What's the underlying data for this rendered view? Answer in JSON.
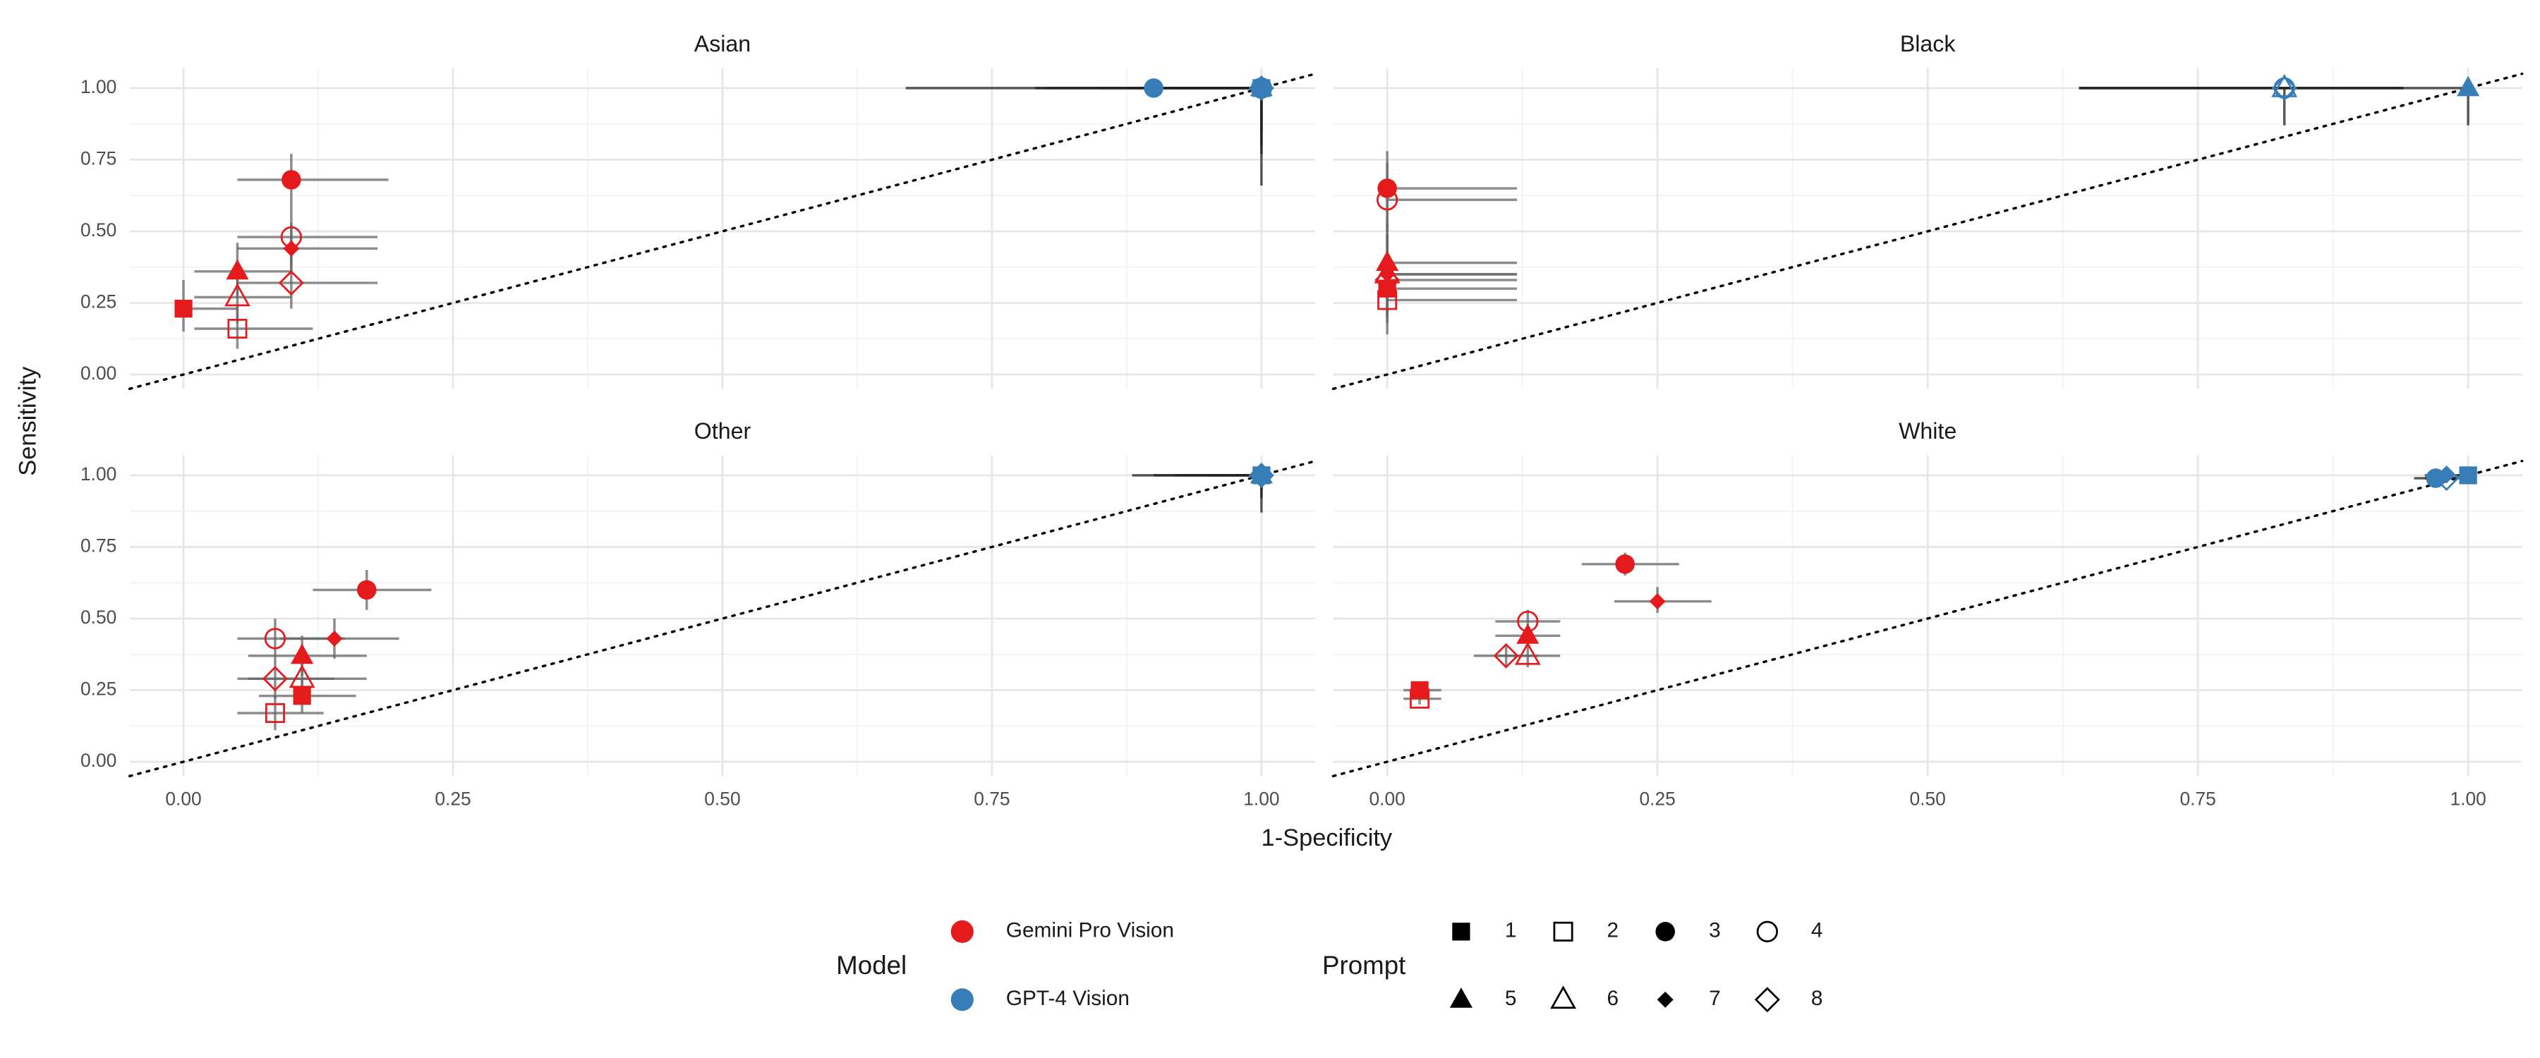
{
  "chart_data": {
    "type": "scatter",
    "xlabel": "1-Specificity",
    "ylabel": "Sensitivity",
    "xlim": [
      -0.05,
      1.05
    ],
    "ylim": [
      -0.05,
      1.07
    ],
    "xticks": [
      {
        "value": 0,
        "label": "0.00"
      },
      {
        "value": 0.25,
        "label": "0.25"
      },
      {
        "value": 0.5,
        "label": "0.50"
      },
      {
        "value": 0.75,
        "label": "0.75"
      },
      {
        "value": 1,
        "label": "1.00"
      }
    ],
    "yticks": [
      {
        "value": 0,
        "label": "0.00"
      },
      {
        "value": 0.25,
        "label": "0.25"
      },
      {
        "value": 0.5,
        "label": "0.50"
      },
      {
        "value": 0.75,
        "label": "0.75"
      },
      {
        "value": 1,
        "label": "1.00"
      }
    ],
    "grid": true,
    "legend_title": "Model",
    "series": [
      {
        "name": "Gemini Pro Vision",
        "color": "#e41a1c"
      },
      {
        "name": "GPT-4 Vision",
        "color": "#377eb8"
      }
    ],
    "shape_legend_title": "Prompt",
    "prompts": [
      {
        "label": "1",
        "shape": "square",
        "filled": true
      },
      {
        "label": "2",
        "shape": "square",
        "filled": false
      },
      {
        "label": "3",
        "shape": "circle",
        "filled": true
      },
      {
        "label": "4",
        "shape": "circle",
        "filled": false
      },
      {
        "label": "5",
        "shape": "triangle",
        "filled": true
      },
      {
        "label": "6",
        "shape": "triangle",
        "filled": false
      },
      {
        "label": "7",
        "shape": "diamond",
        "filled": true
      },
      {
        "label": "8",
        "shape": "diamond",
        "filled": false
      }
    ],
    "facets": [
      {
        "title": "Asian",
        "series": [
          {
            "points": [
              {
                "x": 0,
                "y": 0.23,
                "x_err": [
                  0,
                  0.05
                ],
                "y_err": [
                  0.15,
                  0.33
                ]
              },
              {
                "x": 0.05,
                "y": 0.16,
                "x_err": [
                  0.01,
                  0.12
                ],
                "y_err": [
                  0.09,
                  0.24
                ]
              },
              {
                "x": 0.1,
                "y": 0.68,
                "x_err": [
                  0.05,
                  0.19
                ],
                "y_err": [
                  0.58,
                  0.77
                ]
              },
              {
                "x": 0.1,
                "y": 0.48,
                "x_err": [
                  0.05,
                  0.18
                ],
                "y_err": [
                  0.38,
                  0.58
                ]
              },
              {
                "x": 0.05,
                "y": 0.36,
                "x_err": [
                  0.01,
                  0.1
                ],
                "y_err": [
                  0.27,
                  0.46
                ]
              },
              {
                "x": 0.05,
                "y": 0.27,
                "x_err": [
                  0.01,
                  0.1
                ],
                "y_err": [
                  0.18,
                  0.36
                ]
              },
              {
                "x": 0.1,
                "y": 0.44,
                "x_err": [
                  0.05,
                  0.18
                ],
                "y_err": [
                  0.35,
                  0.53
                ]
              },
              {
                "x": 0.1,
                "y": 0.32,
                "x_err": [
                  0.05,
                  0.18
                ],
                "y_err": [
                  0.23,
                  0.42
                ]
              }
            ]
          },
          {
            "points": [
              {
                "x": 1,
                "y": 1,
                "x_err": [
                  0.79,
                  1
                ],
                "y_err": [
                  0.66,
                  1
                ]
              },
              null,
              {
                "x": 0.9,
                "y": 1,
                "x_err": [
                  0.67,
                  1
                ],
                "y_err": [
                  1,
                  1
                ]
              },
              {
                "x": 1,
                "y": 1,
                "x_err": [
                  0.8,
                  1
                ],
                "y_err": [
                  0.8,
                  1
                ]
              },
              {
                "x": 1,
                "y": 1,
                "x_err": [
                  0.85,
                  1
                ],
                "y_err": [
                  0.77,
                  1
                ]
              },
              null,
              {
                "x": 1,
                "y": 1,
                "x_err": [
                  0.9,
                  1
                ],
                "y_err": [
                  0.9,
                  1
                ]
              },
              {
                "x": 1,
                "y": 1,
                "x_err": [
                  0.88,
                  1
                ],
                "y_err": [
                  0.85,
                  1
                ]
              }
            ]
          }
        ]
      },
      {
        "title": "Black",
        "series": [
          {
            "points": [
              {
                "x": 0,
                "y": 0.3,
                "x_err": [
                  0,
                  0.12
                ],
                "y_err": [
                  0.18,
                  0.42
                ]
              },
              {
                "x": 0,
                "y": 0.26,
                "x_err": [
                  0,
                  0.12
                ],
                "y_err": [
                  0.14,
                  0.38
                ]
              },
              {
                "x": 0,
                "y": 0.65,
                "x_err": [
                  0,
                  0.12
                ],
                "y_err": [
                  0.5,
                  0.78
                ]
              },
              {
                "x": 0,
                "y": 0.61,
                "x_err": [
                  0,
                  0.12
                ],
                "y_err": [
                  0.46,
                  0.74
                ]
              },
              {
                "x": 0,
                "y": 0.39,
                "x_err": [
                  0,
                  0.12
                ],
                "y_err": [
                  0.26,
                  0.53
                ]
              },
              {
                "x": 0,
                "y": 0.35,
                "x_err": [
                  0,
                  0.12
                ],
                "y_err": [
                  0.22,
                  0.49
                ]
              },
              {
                "x": 0,
                "y": 0.35,
                "x_err": [
                  0,
                  0.12
                ],
                "y_err": [
                  0.21,
                  0.49
                ]
              },
              {
                "x": 0,
                "y": 0.33,
                "x_err": [
                  0,
                  0.12
                ],
                "y_err": [
                  0.2,
                  0.47
                ]
              }
            ]
          },
          {
            "points": [
              null,
              null,
              null,
              {
                "x": 0.83,
                "y": 1,
                "x_err": [
                  0.64,
                  0.94
                ],
                "y_err": [
                  1,
                  1
                ]
              },
              {
                "x": 1,
                "y": 1,
                "x_err": [
                  1,
                  1
                ],
                "y_err": [
                  0.87,
                  1
                ]
              },
              {
                "x": 0.83,
                "y": 1,
                "x_err": [
                  0.64,
                  1
                ],
                "y_err": [
                  0.87,
                  1
                ]
              },
              null,
              {
                "x": 0.83,
                "y": 1,
                "x_err": [
                  0.64,
                  0.94
                ],
                "y_err": [
                  1,
                  1
                ]
              }
            ]
          }
        ]
      },
      {
        "title": "Other",
        "series": [
          {
            "points": [
              {
                "x": 0.11,
                "y": 0.23,
                "x_err": [
                  0.07,
                  0.16
                ],
                "y_err": [
                  0.17,
                  0.29
                ]
              },
              {
                "x": 0.085,
                "y": 0.17,
                "x_err": [
                  0.05,
                  0.13
                ],
                "y_err": [
                  0.11,
                  0.23
                ]
              },
              {
                "x": 0.17,
                "y": 0.6,
                "x_err": [
                  0.12,
                  0.23
                ],
                "y_err": [
                  0.53,
                  0.67
                ]
              },
              {
                "x": 0.085,
                "y": 0.43,
                "x_err": [
                  0.05,
                  0.15
                ],
                "y_err": [
                  0.36,
                  0.5
                ]
              },
              {
                "x": 0.11,
                "y": 0.37,
                "x_err": [
                  0.06,
                  0.17
                ],
                "y_err": [
                  0.3,
                  0.44
                ]
              },
              {
                "x": 0.11,
                "y": 0.29,
                "x_err": [
                  0.06,
                  0.17
                ],
                "y_err": [
                  0.22,
                  0.36
                ]
              },
              {
                "x": 0.14,
                "y": 0.43,
                "x_err": [
                  0.09,
                  0.2
                ],
                "y_err": [
                  0.36,
                  0.5
                ]
              },
              {
                "x": 0.085,
                "y": 0.29,
                "x_err": [
                  0.05,
                  0.14
                ],
                "y_err": [
                  0.22,
                  0.36
                ]
              }
            ]
          },
          {
            "points": [
              {
                "x": 1,
                "y": 1,
                "x_err": [
                  0.9,
                  1
                ],
                "y_err": [
                  0.87,
                  1
                ]
              },
              null,
              {
                "x": 1,
                "y": 1,
                "x_err": [
                  0.88,
                  1
                ],
                "y_err": [
                  1,
                  1
                ]
              },
              null,
              {
                "x": 1,
                "y": 1,
                "x_err": [
                  0.95,
                  1
                ],
                "y_err": [
                  0.95,
                  1
                ]
              },
              null,
              null,
              {
                "x": 1,
                "y": 1,
                "x_err": [
                  0.92,
                  1
                ],
                "y_err": [
                  0.92,
                  1
                ]
              }
            ]
          }
        ]
      },
      {
        "title": "White",
        "series": [
          {
            "points": [
              {
                "x": 0.03,
                "y": 0.25,
                "x_err": [
                  0.015,
                  0.05
                ],
                "y_err": [
                  0.22,
                  0.28
                ]
              },
              {
                "x": 0.03,
                "y": 0.22,
                "x_err": [
                  0.015,
                  0.05
                ],
                "y_err": [
                  0.2,
                  0.25
                ]
              },
              {
                "x": 0.22,
                "y": 0.69,
                "x_err": [
                  0.18,
                  0.27
                ],
                "y_err": [
                  0.65,
                  0.73
                ]
              },
              {
                "x": 0.13,
                "y": 0.49,
                "x_err": [
                  0.1,
                  0.16
                ],
                "y_err": [
                  0.45,
                  0.53
                ]
              },
              {
                "x": 0.13,
                "y": 0.44,
                "x_err": [
                  0.1,
                  0.16
                ],
                "y_err": [
                  0.4,
                  0.48
                ]
              },
              {
                "x": 0.13,
                "y": 0.37,
                "x_err": [
                  0.1,
                  0.16
                ],
                "y_err": [
                  0.33,
                  0.41
                ]
              },
              {
                "x": 0.25,
                "y": 0.56,
                "x_err": [
                  0.21,
                  0.3
                ],
                "y_err": [
                  0.52,
                  0.61
                ]
              },
              {
                "x": 0.11,
                "y": 0.37,
                "x_err": [
                  0.08,
                  0.14
                ],
                "y_err": [
                  0.33,
                  0.41
                ]
              }
            ]
          },
          {
            "points": [
              {
                "x": 1,
                "y": 1,
                "x_err": [
                  0.99,
                  1
                ],
                "y_err": [
                  0.98,
                  1
                ]
              },
              null,
              {
                "x": 0.97,
                "y": 0.99,
                "x_err": [
                  0.95,
                  0.99
                ],
                "y_err": [
                  0.98,
                  1
                ]
              },
              null,
              null,
              null,
              {
                "x": 0.98,
                "y": 1,
                "x_err": [
                  0.96,
                  1
                ],
                "y_err": [
                  0.99,
                  1
                ]
              },
              {
                "x": 0.98,
                "y": 0.99,
                "x_err": [
                  0.96,
                  1
                ],
                "y_err": [
                  0.98,
                  1
                ]
              }
            ]
          }
        ]
      }
    ]
  }
}
